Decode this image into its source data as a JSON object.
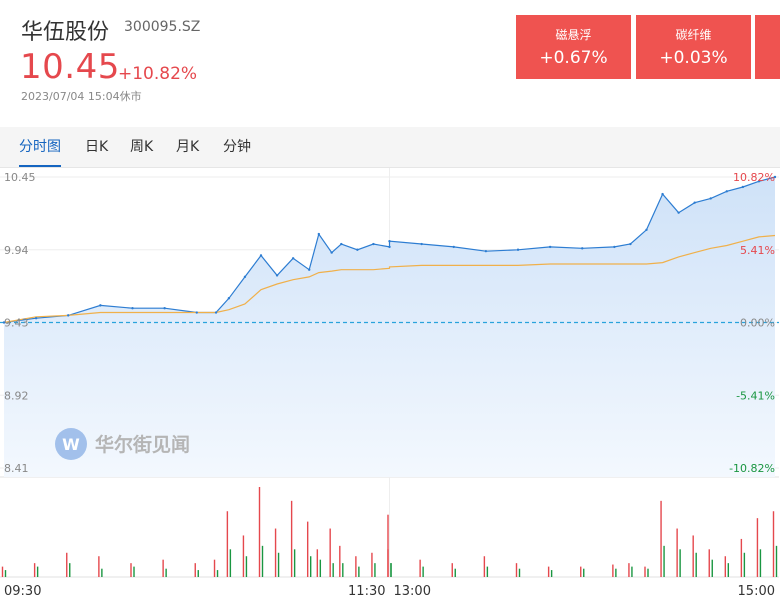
{
  "stock": {
    "name": "华伍股份",
    "code": "300095.SZ",
    "price": "10.45",
    "change_pct": "+10.82%",
    "timestamp": "2023/07/04 15:04休市"
  },
  "concepts": [
    {
      "name": "磁悬浮",
      "change": "+0.67%"
    },
    {
      "name": "碳纤维",
      "change": "+0.03%"
    }
  ],
  "tabs": [
    "分时图",
    "日K",
    "周K",
    "月K",
    "分钟"
  ],
  "active_tab": "分时图",
  "watermark": "华尔街见闻",
  "colors": {
    "up": "#e5484d",
    "down": "#1a9641",
    "price_line": "#2d7dd2",
    "avg_line": "#f0b04a",
    "area_fill": "#cfe2f8",
    "prev_close_line": "#29a3dc",
    "tab_active": "#1565c0"
  },
  "chart_data": {
    "type": "line",
    "prev_close": 9.43,
    "price_labels": [
      "10.45",
      "9.94",
      "9.43",
      "8.92",
      "8.41"
    ],
    "pct_labels": [
      "10.82%",
      "5.41%",
      "0.00%",
      "-5.41%",
      "-10.82%"
    ],
    "x_labels": [
      "09:30",
      "11:30",
      "13:00",
      "15:00"
    ],
    "ylim": [
      8.41,
      10.45
    ],
    "x": [
      "09:30",
      "09:40",
      "09:50",
      "10:00",
      "10:10",
      "10:20",
      "10:30",
      "10:36",
      "10:40",
      "10:45",
      "10:50",
      "10:55",
      "11:00",
      "11:05",
      "11:08",
      "11:12",
      "11:15",
      "11:20",
      "11:25",
      "11:30",
      "13:00",
      "13:10",
      "13:20",
      "13:30",
      "13:40",
      "13:50",
      "14:00",
      "14:10",
      "14:15",
      "14:20",
      "14:25",
      "14:30",
      "14:35",
      "14:40",
      "14:45",
      "14:50",
      "14:55",
      "15:00"
    ],
    "series": [
      {
        "values": [
          9.43,
          9.46,
          9.48,
          9.55,
          9.53,
          9.53,
          9.5,
          9.5,
          9.6,
          9.75,
          9.9,
          9.76,
          9.88,
          9.8,
          10.05,
          9.92,
          9.98,
          9.94,
          9.98,
          9.96,
          10.0,
          9.98,
          9.96,
          9.93,
          9.94,
          9.96,
          9.95,
          9.96,
          9.98,
          10.08,
          10.33,
          10.2,
          10.27,
          10.3,
          10.35,
          10.38,
          10.42,
          10.45
        ]
      },
      {
        "values": [
          9.43,
          9.47,
          9.48,
          9.5,
          9.5,
          9.5,
          9.5,
          9.5,
          9.52,
          9.56,
          9.66,
          9.7,
          9.73,
          9.75,
          9.78,
          9.79,
          9.8,
          9.8,
          9.8,
          9.81,
          9.82,
          9.83,
          9.83,
          9.83,
          9.83,
          9.84,
          9.84,
          9.84,
          9.84,
          9.84,
          9.85,
          9.89,
          9.92,
          9.95,
          9.97,
          10.0,
          10.03,
          10.04
        ]
      }
    ],
    "volume_series": [
      {
        "color": "up",
        "values": [
          15,
          20,
          35,
          30,
          20,
          25,
          20,
          25,
          95,
          60,
          130,
          70,
          110,
          80,
          40,
          70,
          45,
          30,
          35,
          90,
          40,
          25,
          20,
          30,
          20,
          15,
          15,
          18,
          20,
          15,
          110,
          70,
          60,
          40,
          30,
          55,
          85,
          95
        ]
      },
      {
        "color": "down",
        "values": [
          10,
          15,
          20,
          12,
          15,
          12,
          10,
          10,
          40,
          30,
          45,
          35,
          40,
          30,
          25,
          20,
          20,
          15,
          20,
          20,
          20,
          15,
          12,
          15,
          12,
          10,
          12,
          12,
          15,
          12,
          45,
          40,
          35,
          25,
          20,
          35,
          40,
          45
        ]
      }
    ]
  }
}
